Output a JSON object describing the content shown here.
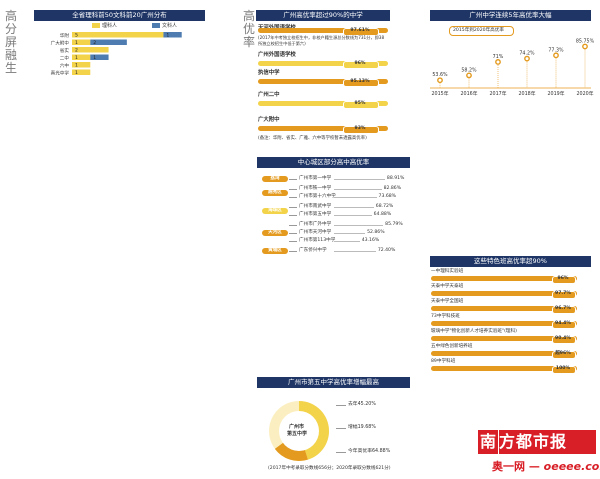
{
  "section_labels": {
    "left": "高分屏融生",
    "mid": "高优率"
  },
  "chart_data": [
    {
      "type": "bar",
      "title": "全省理科前50文科前20广州分布",
      "legend": [
        "理科人",
        "文科人"
      ],
      "categories": [
        "华附",
        "广大附中",
        "省实",
        "二中",
        "六中",
        "真光中学"
      ],
      "series": [
        {
          "name": "理科人",
          "values": [
            5,
            1,
            2,
            1,
            1,
            1
          ],
          "color": "#f2d34a"
        },
        {
          "name": "文科人",
          "values": [
            1,
            2,
            0,
            1,
            0,
            0
          ],
          "color": "#4f7cb0"
        }
      ],
      "xlim": [
        0,
        7
      ]
    },
    {
      "type": "bar",
      "title": "广州高优率超过90%的中学",
      "items": [
        {
          "label": "天河外国语学校",
          "value": "97.61%",
          "note": "(2017年中考独立校招生中，非校户籍生源总分数线为731分，即38所独立校招生中低于第六)",
          "color": "#e49a1e"
        },
        {
          "label": "广州外国语学校",
          "value": "96%",
          "color": "#f2d34a"
        },
        {
          "label": "执信中学",
          "value": "95.13%",
          "color": "#e49a1e"
        },
        {
          "label": "广州二中",
          "value": "95%",
          "color": "#f2d34a"
        },
        {
          "label": "广大附中",
          "value": "93%",
          "color": "#e49a1e"
        }
      ],
      "footnote": "(备注：华附、省实、广雅、六中等学校暂未透露高优率)"
    },
    {
      "type": "line",
      "title": "广州中学连续5年高优率大幅",
      "subtitle": "2015年到2020年高优率",
      "x": [
        "2015年",
        "2016年",
        "2017年",
        "2018年",
        "2019年",
        "2020年"
      ],
      "y_labels": [
        "53.6%",
        "58.2%",
        "71%",
        "74.2%",
        "77.3%",
        "85.75%"
      ],
      "y": [
        53.6,
        58.2,
        71,
        74.2,
        77.3,
        85.75
      ]
    },
    {
      "type": "bar",
      "title": "中心城区部分高中高优率",
      "groups": [
        {
          "label": "荔湾",
          "color": "#e49a1e",
          "schools": [
            {
              "name": "广州市第一中学",
              "value": "88.91%"
            }
          ]
        },
        {
          "label": "越秀区",
          "color": "#e49a1e",
          "schools": [
            {
              "name": "广州市铁一中学",
              "value": "82.86%"
            },
            {
              "name": "广州市第十六中学",
              "value": "73.68%"
            }
          ]
        },
        {
          "label": "海珠区",
          "color": "#f2d34a",
          "schools": [
            {
              "name": "广州市南武中学",
              "value": "68.72%"
            },
            {
              "name": "广州市第五中学",
              "value": "64.88%"
            }
          ]
        },
        {
          "label": "天河区",
          "color": "#e49a1e",
          "schools": [
            {
              "name": "广州市广外中学",
              "value": "85.79%"
            },
            {
              "name": "广州市天河中学",
              "value": "52.86%"
            },
            {
              "name": "广州市第113中学",
              "value": "43.16%"
            }
          ]
        },
        {
          "label": "黄埔区",
          "color": "#e49a1e",
          "schools": [
            {
              "name": "广东侨兴中学",
              "value": "72.40%"
            }
          ]
        }
      ]
    },
    {
      "type": "bar",
      "title": "这些特色班高优率超90%",
      "items": [
        {
          "label": "一中理科实验班",
          "value": "96%"
        },
        {
          "label": "天泰中学天泰班",
          "value": "97.7%"
        },
        {
          "label": "天泰中学全国班",
          "value": "96.7%"
        },
        {
          "label": "73中学科技班",
          "value": "94.4%"
        },
        {
          "label": "玻璃中学\"物化创新人才培养实验班\"(理科)",
          "value": "90.4%"
        },
        {
          "label": "五中绿色创新培养班",
          "value": "超96%"
        },
        {
          "label": "89中学科班",
          "value": "100%"
        }
      ]
    },
    {
      "type": "pie",
      "title": "广州市第五中学高优率增幅最高",
      "center_label": [
        "广州市",
        "第五中学"
      ],
      "slices": [
        {
          "label": "去年45.20%",
          "value": 45.2,
          "color": "#f2d34a"
        },
        {
          "label": "增幅19.68%",
          "value": 19.68,
          "color": "#fbefc2"
        },
        {
          "label": "今年高优率64.88%",
          "value": 64.88,
          "color": "#e49a1e"
        }
      ],
      "footnote": "(2017年中考录取分数线656分；2020年录取分数线621分)"
    }
  ],
  "brand": {
    "name": "南方都市报",
    "site": "奥一网",
    "domain": "oeeee.com"
  }
}
